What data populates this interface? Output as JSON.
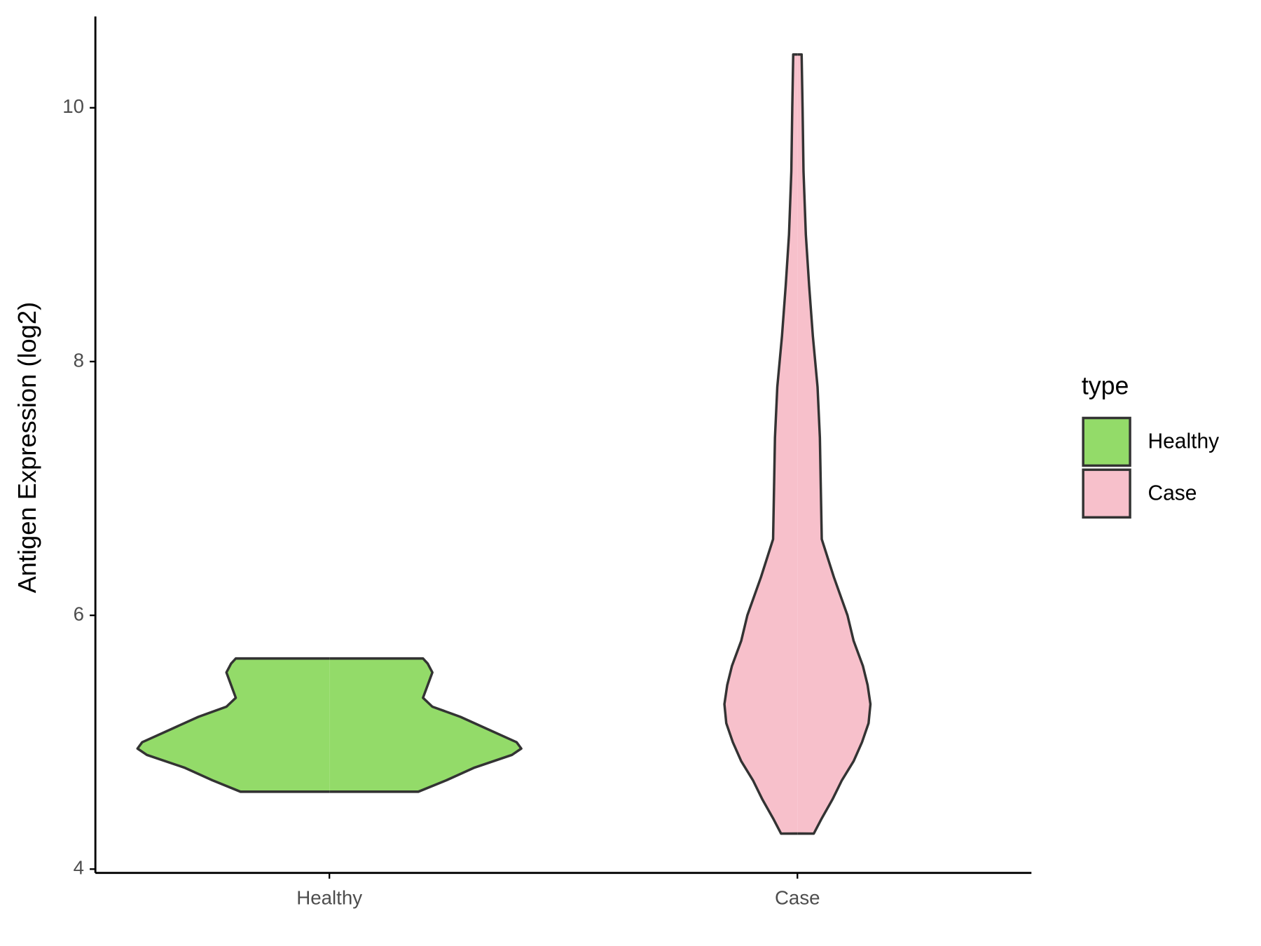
{
  "chart_data": {
    "type": "violin",
    "y_axis_label": "Antigen Expression (log2)",
    "categories": [
      "Healthy",
      "Case"
    ],
    "ylim": [
      3.97,
      10.72
    ],
    "yticks": [
      4,
      6,
      8,
      10
    ],
    "legend_title": "type",
    "legend_position": "right",
    "series": [
      {
        "name": "Healthy",
        "color": "#93db69",
        "y": [
          4.61,
          4.7,
          4.8,
          4.9,
          4.95,
          5.0,
          5.1,
          5.2,
          5.28,
          5.35,
          5.45,
          5.55,
          5.62,
          5.66
        ],
        "width": [
          0.19,
          0.25,
          0.31,
          0.39,
          0.41,
          0.4,
          0.34,
          0.28,
          0.22,
          0.2,
          0.21,
          0.22,
          0.21,
          0.2
        ]
      },
      {
        "name": "Case",
        "color": "#f7c0cb",
        "y": [
          4.28,
          4.4,
          4.55,
          4.7,
          4.85,
          5.0,
          5.15,
          5.3,
          5.45,
          5.6,
          5.8,
          6.0,
          6.3,
          6.6,
          7.0,
          7.4,
          7.8,
          8.2,
          8.6,
          9.0,
          9.5,
          10.0,
          10.42
        ],
        "width": [
          0.035,
          0.052,
          0.075,
          0.095,
          0.12,
          0.138,
          0.152,
          0.156,
          0.15,
          0.14,
          0.12,
          0.107,
          0.078,
          0.052,
          0.05,
          0.048,
          0.043,
          0.033,
          0.025,
          0.018,
          0.013,
          0.011,
          0.009
        ]
      }
    ]
  }
}
